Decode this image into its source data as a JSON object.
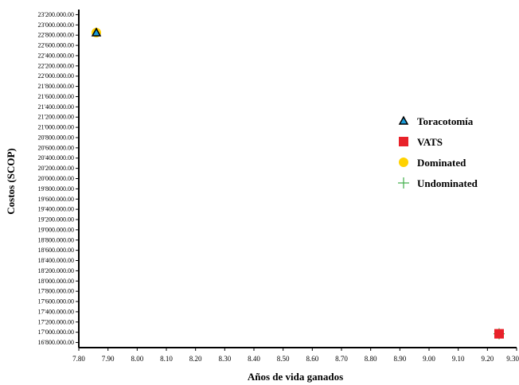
{
  "chart_data": {
    "type": "scatter",
    "title": "",
    "xlabel": "Años de vida ganados",
    "ylabel": "Costos (SCOP)",
    "xlim": [
      7.8,
      9.3
    ],
    "ylim": [
      16700000,
      23300000
    ],
    "x_ticks": [
      7.8,
      7.9,
      8.0,
      8.1,
      8.2,
      8.3,
      8.4,
      8.5,
      8.6,
      8.7,
      8.8,
      8.9,
      9.0,
      9.1,
      9.2,
      9.3
    ],
    "x_tick_labels": [
      "7.80",
      "7.90",
      "8.00",
      "8.10",
      "8.20",
      "8.30",
      "8.40",
      "8.50",
      "8.60",
      "8.70",
      "8.80",
      "8.90",
      "9.00",
      "9.10",
      "9.20",
      "9.30"
    ],
    "y_ticks": [
      16800000,
      17000000,
      17200000,
      17400000,
      17600000,
      17800000,
      18000000,
      18200000,
      18400000,
      18600000,
      18800000,
      19000000,
      19200000,
      19400000,
      19600000,
      19800000,
      20000000,
      20200000,
      20400000,
      20600000,
      20800000,
      21000000,
      21200000,
      21400000,
      21600000,
      21800000,
      22000000,
      22200000,
      22400000,
      22600000,
      22800000,
      23000000,
      23200000
    ],
    "y_tick_labels": [
      "16'800.000.00",
      "17'000.000.00",
      "17'200.000.00",
      "17'400.000.00",
      "17'600.000.00",
      "17'800.000.00",
      "18'000.000.00",
      "18'200.000.00",
      "18'400.000.00",
      "18'600.000.00",
      "18'800.000.00",
      "19'000.000.00",
      "19'200.000.00",
      "19'400.000.00",
      "19'600.000.00",
      "19'800.000.00",
      "20'000.000.00",
      "20'200.000.00",
      "20'400.000.00",
      "20'600.000.00",
      "20'800.000.00",
      "21'000.000.00",
      "21'200.000.00",
      "21'400.000.00",
      "21'600.000.00",
      "21'800.000.00",
      "22'000.000.00",
      "22'200.000.00",
      "22'400.000.00",
      "22'600.000.00",
      "22'800.000.00",
      "23'000.000.00",
      "23'200.000.00"
    ],
    "grid": false,
    "legend_position": "right",
    "series": [
      {
        "name": "Toracotomía",
        "marker": "triangle",
        "color": "#1a9bd7",
        "points": [
          {
            "x": 7.86,
            "y": 22850000
          }
        ]
      },
      {
        "name": "VATS",
        "marker": "square",
        "color": "#e8222a",
        "points": [
          {
            "x": 9.24,
            "y": 16970000
          }
        ]
      },
      {
        "name": "Dominated",
        "marker": "circle",
        "color": "#ffd200",
        "points": [
          {
            "x": 7.86,
            "y": 22850000
          }
        ]
      },
      {
        "name": "Undominated",
        "marker": "plus",
        "color": "#3fae49",
        "points": [
          {
            "x": 9.24,
            "y": 16970000
          }
        ]
      }
    ]
  }
}
